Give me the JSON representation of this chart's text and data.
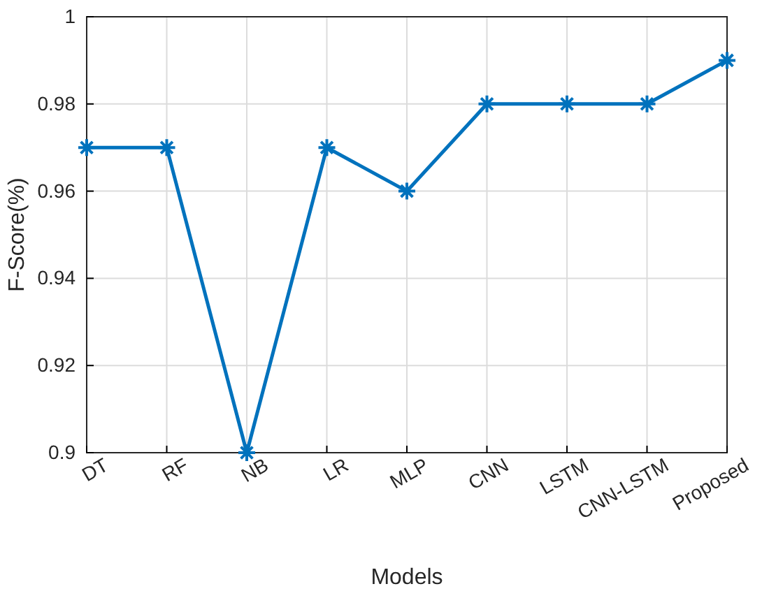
{
  "chart_data": {
    "type": "line",
    "xlabel": "Models",
    "ylabel": "F-Score(%)",
    "categories": [
      "DT",
      "RF",
      "NB",
      "LR",
      "MLP",
      "CNN",
      "LSTM",
      "CNN-LSTM",
      "Proposed"
    ],
    "series": [
      {
        "color": "#0072bd",
        "values": [
          0.97,
          0.97,
          0.9,
          0.97,
          0.96,
          0.98,
          0.98,
          0.98,
          0.99
        ]
      }
    ],
    "ylim": [
      0.9,
      1
    ],
    "yticks": [
      {
        "value": 0.9,
        "label": "0.9"
      },
      {
        "value": 0.92,
        "label": "0.92"
      },
      {
        "value": 0.94,
        "label": "0.94"
      },
      {
        "value": 0.96,
        "label": "0.96"
      },
      {
        "value": 0.98,
        "label": "0.98"
      },
      {
        "value": 1,
        "label": "1"
      }
    ],
    "grid": true,
    "marker": "cross",
    "line_style": "solid"
  }
}
